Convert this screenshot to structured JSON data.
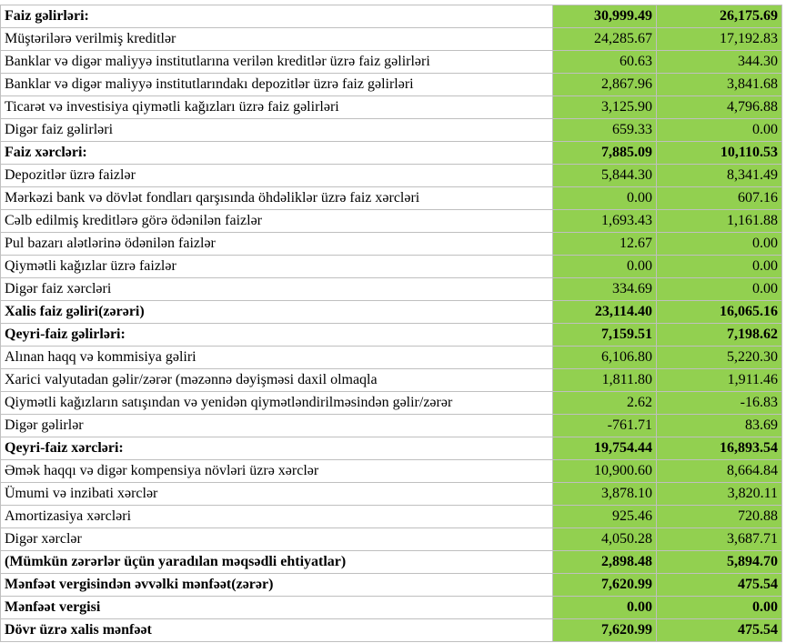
{
  "table": {
    "rows": [
      {
        "cells": [
          "Faiz gəlirləri:",
          "30,999.49",
          "26,175.69"
        ],
        "bold": true
      },
      {
        "cells": [
          "Müştərilərə verilmiş kreditlər",
          "24,285.67",
          "17,192.83"
        ],
        "bold": false
      },
      {
        "cells": [
          "Banklar və digər maliyyə institutlarına verilən kreditlər üzrə faiz gəlirləri",
          "60.63",
          "344.30"
        ],
        "bold": false
      },
      {
        "cells": [
          "Banklar və digər maliyyə institutlarındakı depozitlər üzrə faiz gəlirləri",
          "2,867.96",
          "3,841.68"
        ],
        "bold": false
      },
      {
        "cells": [
          "Ticarət və investisiya qiymətli kağızları üzrə faiz gəlirləri",
          "3,125.90",
          "4,796.88"
        ],
        "bold": false
      },
      {
        "cells": [
          "Digər faiz gəlirləri",
          "659.33",
          "0.00"
        ],
        "bold": false
      },
      {
        "cells": [
          "Faiz xərcləri:",
          "7,885.09",
          "10,110.53"
        ],
        "bold": true
      },
      {
        "cells": [
          "Depozitlər üzrə faizlər",
          "5,844.30",
          "8,341.49"
        ],
        "bold": false
      },
      {
        "cells": [
          "Mərkəzi bank və dövlət fondları qarşısında öhdəliklər üzrə faiz xərcləri",
          "0.00",
          "607.16"
        ],
        "bold": false
      },
      {
        "cells": [
          "Cəlb edilmiş kreditlərə görə ödənilən faizlər",
          "1,693.43",
          "1,161.88"
        ],
        "bold": false
      },
      {
        "cells": [
          "Pul bazarı alətlərinə ödənilən faizlər",
          "12.67",
          "0.00"
        ],
        "bold": false
      },
      {
        "cells": [
          "Qiymətli kağızlar üzrə faizlər",
          "0.00",
          "0.00"
        ],
        "bold": false
      },
      {
        "cells": [
          "Digər faiz xərcləri",
          "334.69",
          "0.00"
        ],
        "bold": false
      },
      {
        "cells": [
          "Xalis faiz gəliri(zərəri)",
          "23,114.40",
          "16,065.16"
        ],
        "bold": true
      },
      {
        "cells": [
          "Qeyri-faiz gəlirləri:",
          "7,159.51",
          "7,198.62"
        ],
        "bold": true
      },
      {
        "cells": [
          "Alınan haqq və kommisiya gəliri",
          "6,106.80",
          "5,220.30"
        ],
        "bold": false
      },
      {
        "cells": [
          "Xarici valyutadan gəlir/zərər (məzənnə dəyişməsi daxil olmaqla",
          "1,811.80",
          "1,911.46"
        ],
        "bold": false
      },
      {
        "cells": [
          "Qiymətli kağızların satışından və yenidən qiymətləndirilməsindən gəlir/zərər",
          "2.62",
          "-16.83"
        ],
        "bold": false
      },
      {
        "cells": [
          "Digər gəlirlər",
          "-761.71",
          "83.69"
        ],
        "bold": false
      },
      {
        "cells": [
          "Qeyri-faiz xərcləri:",
          "19,754.44",
          "16,893.54"
        ],
        "bold": true
      },
      {
        "cells": [
          "Əmək haqqı və digər kompensiya növləri üzrə xərclər",
          "10,900.60",
          "8,664.84"
        ],
        "bold": false
      },
      {
        "cells": [
          "Ümumi və inzibati xərclər",
          "3,878.10",
          "3,820.11"
        ],
        "bold": false
      },
      {
        "cells": [
          "Amortizasiya xərcləri",
          "925.46",
          "720.88"
        ],
        "bold": false
      },
      {
        "cells": [
          "Digər xərclər",
          "4,050.28",
          "3,687.71"
        ],
        "bold": false
      },
      {
        "cells": [
          "(Mümkün zərərlər üçün yaradılan məqsədli ehtiyatlar)",
          "2,898.48",
          "5,894.70"
        ],
        "bold": true
      },
      {
        "cells": [
          "Mənfəət vergisindən əvvəlki mənfəət(zərər)",
          "7,620.99",
          "475.54"
        ],
        "bold": true
      },
      {
        "cells": [
          "Mənfəət vergisi",
          "0.00",
          "0.00"
        ],
        "bold": true
      },
      {
        "cells": [
          "Dövr üzrə xalis mənfəət",
          "7,620.99",
          "475.54"
        ],
        "bold": true
      }
    ]
  }
}
